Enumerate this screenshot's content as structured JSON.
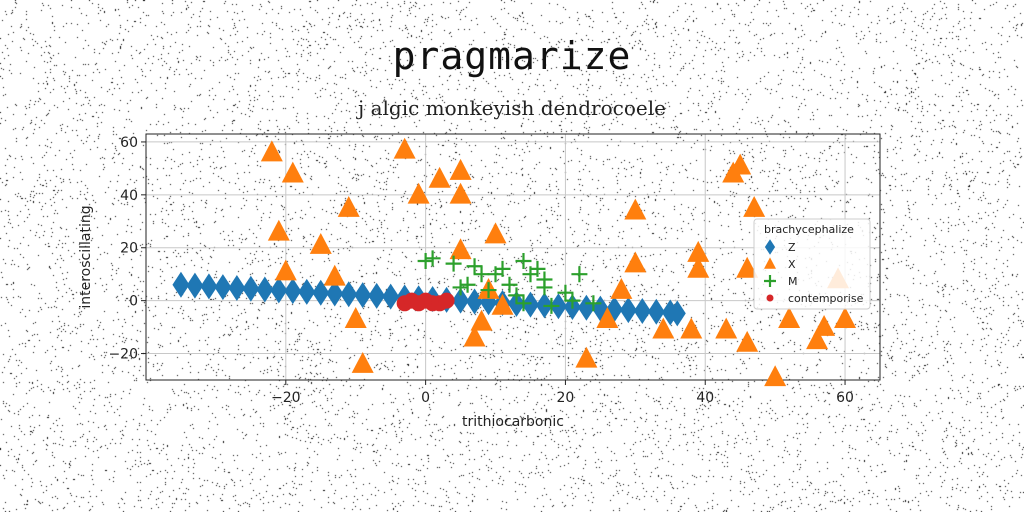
{
  "title": "pragmarize",
  "subtitle": "j algic monkeyish dendrocoele",
  "chart_data": {
    "type": "scatter",
    "xlabel": "trithiocarbonic",
    "ylabel": "interoscillating",
    "xlim": [
      -40,
      65
    ],
    "ylim": [
      -30,
      63
    ],
    "xticks": [
      -20,
      0,
      20,
      40,
      60
    ],
    "xtick_labels": [
      "−20",
      "0",
      "20",
      "40",
      "60"
    ],
    "yticks": [
      -20,
      0,
      20,
      40,
      60
    ],
    "ytick_labels": [
      "−20",
      "0",
      "20",
      "40",
      "60"
    ],
    "grid": true,
    "legend": {
      "title": "brachycephalize",
      "position": "right"
    },
    "colors": {
      "Z": "#1f77b4",
      "X": "#ff7f0e",
      "M": "#2ca02c",
      "contemporise": "#d62728"
    },
    "series": [
      {
        "name": "Z",
        "marker": "diamond",
        "points": [
          [
            -35,
            6
          ],
          [
            -33,
            5.7
          ],
          [
            -31,
            5.4
          ],
          [
            -29,
            5.1
          ],
          [
            -27,
            4.8
          ],
          [
            -25,
            4.5
          ],
          [
            -23,
            4.2
          ],
          [
            -21,
            3.9
          ],
          [
            -19,
            3.6
          ],
          [
            -17,
            3.3
          ],
          [
            -15,
            3.0
          ],
          [
            -13,
            2.7
          ],
          [
            -11,
            2.4
          ],
          [
            -9,
            2.1
          ],
          [
            -7,
            1.8
          ],
          [
            -5,
            1.5
          ],
          [
            -3,
            1.2
          ],
          [
            -1,
            0.9
          ],
          [
            1,
            0.6
          ],
          [
            3,
            0.3
          ],
          [
            5,
            0
          ],
          [
            7,
            -0.3
          ],
          [
            9,
            -0.6
          ],
          [
            11,
            -0.9
          ],
          [
            13,
            -1.2
          ],
          [
            15,
            -1.5
          ],
          [
            17,
            -1.8
          ],
          [
            19,
            -2.1
          ],
          [
            21,
            -2.4
          ],
          [
            23,
            -2.7
          ],
          [
            25,
            -3.0
          ],
          [
            27,
            -3.3
          ],
          [
            29,
            -3.6
          ],
          [
            31,
            -3.9
          ],
          [
            33,
            -4.2
          ],
          [
            35,
            -4.5
          ],
          [
            36,
            -4.8
          ]
        ]
      },
      {
        "name": "X",
        "marker": "triangle",
        "points": [
          [
            -22,
            56
          ],
          [
            -19,
            48
          ],
          [
            -21,
            26
          ],
          [
            -20,
            11
          ],
          [
            -15,
            21
          ],
          [
            -13,
            9
          ],
          [
            -11,
            35
          ],
          [
            -10,
            -7
          ],
          [
            -9,
            -24
          ],
          [
            -3,
            57
          ],
          [
            -1,
            40
          ],
          [
            2,
            46
          ],
          [
            5,
            49
          ],
          [
            5,
            40
          ],
          [
            5,
            19
          ],
          [
            8,
            -8
          ],
          [
            7,
            -14
          ],
          [
            10,
            25
          ],
          [
            9,
            4
          ],
          [
            11,
            -2
          ],
          [
            23,
            -22
          ],
          [
            26,
            -7
          ],
          [
            28,
            4
          ],
          [
            30,
            14
          ],
          [
            30,
            34
          ],
          [
            34,
            -11
          ],
          [
            38,
            -11
          ],
          [
            39,
            18
          ],
          [
            39,
            12
          ],
          [
            43,
            -11
          ],
          [
            44,
            48
          ],
          [
            45,
            51
          ],
          [
            46,
            12
          ],
          [
            46,
            -16
          ],
          [
            47,
            35
          ],
          [
            50,
            -29
          ],
          [
            52,
            -7
          ],
          [
            56,
            -15
          ],
          [
            57,
            -10
          ],
          [
            59,
            8
          ],
          [
            60,
            -7
          ]
        ]
      },
      {
        "name": "M",
        "marker": "plus",
        "points": [
          [
            0,
            15
          ],
          [
            1,
            16
          ],
          [
            4,
            14
          ],
          [
            5,
            5
          ],
          [
            6,
            6
          ],
          [
            7,
            13
          ],
          [
            8,
            10
          ],
          [
            9,
            4
          ],
          [
            10,
            10
          ],
          [
            11,
            12
          ],
          [
            12,
            6
          ],
          [
            13,
            2
          ],
          [
            14,
            15
          ],
          [
            14,
            -1
          ],
          [
            15,
            10
          ],
          [
            16,
            12
          ],
          [
            17,
            5
          ],
          [
            17,
            8
          ],
          [
            18,
            -2
          ],
          [
            20,
            3
          ],
          [
            21,
            0
          ],
          [
            22,
            10
          ],
          [
            24,
            -1
          ]
        ]
      },
      {
        "name": "contemporise",
        "marker": "circle",
        "points": [
          [
            -3,
            -1
          ],
          [
            -2,
            0
          ],
          [
            -1,
            -1
          ],
          [
            0,
            0
          ],
          [
            1,
            -1
          ],
          [
            2,
            -1
          ],
          [
            3,
            0
          ]
        ]
      }
    ]
  }
}
